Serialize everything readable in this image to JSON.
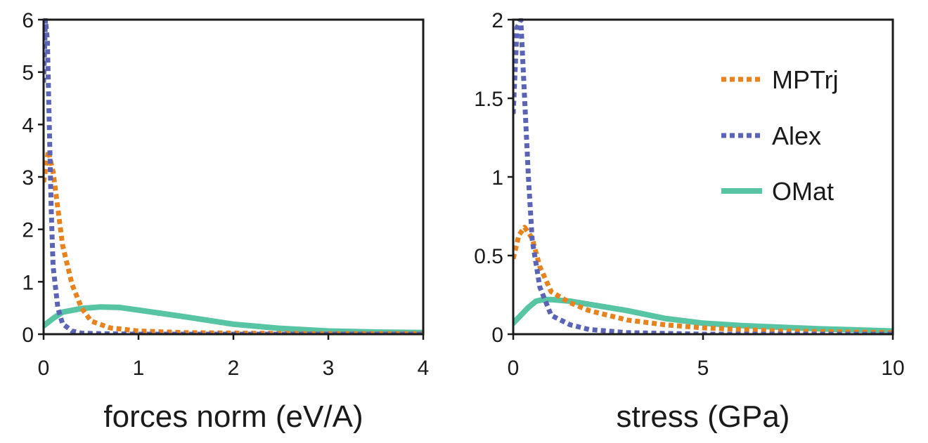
{
  "colors": {
    "MPTrj": "#e8821e",
    "Alex": "#5b63b7",
    "OMat": "#57c4a3",
    "axis": "#1a1a1a"
  },
  "legend": {
    "placement": "top-right of right panel",
    "entries": [
      {
        "name": "MPTrj",
        "style": "dotted"
      },
      {
        "name": "Alex",
        "style": "dotted"
      },
      {
        "name": "OMat",
        "style": "solid"
      }
    ]
  },
  "chart_data": [
    {
      "type": "line",
      "xlabel": "forces norm (eV/A)",
      "ylabel": "",
      "xlim": [
        0,
        4
      ],
      "ylim": [
        0,
        6
      ],
      "xticks": [
        0,
        1,
        2,
        3,
        4
      ],
      "xtick_labels": [
        "0",
        "1",
        "2",
        "3",
        "4"
      ],
      "yticks": [
        0,
        1,
        2,
        3,
        4,
        5,
        6
      ],
      "ytick_labels": [
        "0",
        "1",
        "2",
        "3",
        "4",
        "5",
        "6"
      ],
      "grid": false,
      "series": [
        {
          "name": "MPTrj",
          "style": "dotted",
          "x": [
            0,
            0.05,
            0.1,
            0.15,
            0.2,
            0.3,
            0.4,
            0.5,
            0.7,
            1.0,
            1.5,
            2.0,
            3.0,
            4.0
          ],
          "y": [
            2.9,
            3.5,
            3.1,
            2.4,
            1.7,
            0.95,
            0.5,
            0.25,
            0.12,
            0.06,
            0.03,
            0.02,
            0.01,
            0.01
          ]
        },
        {
          "name": "Alex",
          "style": "dotted",
          "x": [
            0,
            0.02,
            0.04,
            0.06,
            0.08,
            0.1,
            0.15,
            0.2,
            0.3,
            0.4,
            0.6,
            1.0,
            2.0,
            4.0
          ],
          "y": [
            4.8,
            6.0,
            5.6,
            4.0,
            2.4,
            1.3,
            0.5,
            0.2,
            0.06,
            0.02,
            0.01,
            0.0,
            0.0,
            0.0
          ]
        },
        {
          "name": "OMat",
          "style": "solid",
          "x": [
            0,
            0.1,
            0.2,
            0.4,
            0.6,
            0.8,
            1.0,
            1.5,
            2.0,
            2.5,
            3.0,
            3.5,
            4.0
          ],
          "y": [
            0.16,
            0.3,
            0.42,
            0.49,
            0.52,
            0.51,
            0.46,
            0.33,
            0.19,
            0.11,
            0.06,
            0.04,
            0.03
          ]
        }
      ]
    },
    {
      "type": "line",
      "xlabel": "stress (GPa)",
      "ylabel": "",
      "xlim": [
        0,
        10
      ],
      "ylim": [
        0,
        2
      ],
      "xticks": [
        0,
        5,
        10
      ],
      "xtick_labels": [
        "0",
        "5",
        "10"
      ],
      "yticks": [
        0,
        0.5,
        1,
        1.5,
        2
      ],
      "ytick_labels": [
        "0",
        "0.5",
        "1",
        "1.5",
        "2"
      ],
      "grid": false,
      "series": [
        {
          "name": "MPTrj",
          "style": "dotted",
          "x": [
            0,
            0.15,
            0.3,
            0.5,
            0.7,
            1.0,
            1.5,
            2.0,
            3.0,
            4.0,
            5.0,
            7.0,
            10.0
          ],
          "y": [
            0.48,
            0.63,
            0.68,
            0.61,
            0.43,
            0.27,
            0.2,
            0.15,
            0.09,
            0.06,
            0.04,
            0.02,
            0.01
          ]
        },
        {
          "name": "Alex",
          "style": "dotted",
          "x": [
            0,
            0.1,
            0.2,
            0.3,
            0.4,
            0.5,
            0.7,
            1.0,
            1.5,
            2.0,
            3.0,
            5.0,
            10.0
          ],
          "y": [
            1.4,
            1.95,
            2.0,
            1.5,
            1.0,
            0.6,
            0.3,
            0.12,
            0.06,
            0.03,
            0.01,
            0.0,
            0.0
          ]
        },
        {
          "name": "OMat",
          "style": "solid",
          "x": [
            0,
            0.2,
            0.4,
            0.6,
            0.8,
            1.0,
            1.5,
            2.0,
            3.0,
            4.0,
            5.0,
            6.0,
            8.0,
            10.0
          ],
          "y": [
            0.07,
            0.12,
            0.17,
            0.21,
            0.22,
            0.22,
            0.21,
            0.19,
            0.15,
            0.1,
            0.07,
            0.055,
            0.035,
            0.02
          ]
        }
      ]
    }
  ]
}
